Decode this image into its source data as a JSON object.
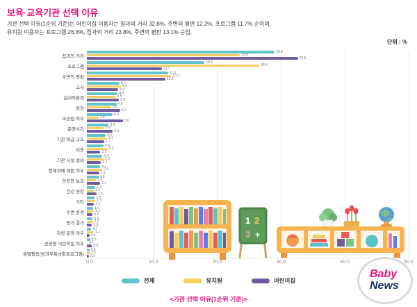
{
  "header": {
    "title": "보육·교육기관 선택 이유",
    "subtitle_line1": "기관 선택 이유(1순위 기준)는 어린이집 이용자는 집과의 거리 32.8%, 주변의 평판 12.2%, 프로그램 11.7% 순이며,",
    "subtitle_line2": "유치원 이용자는 프로그램 26.8%, 집과의 거리 23.8%, 주변의 평판 13.1% 순임.",
    "unit_label": "단위 : %"
  },
  "chart_data": {
    "type": "bar",
    "orientation": "horizontal",
    "title": "보육·교육기관 선택 이유",
    "xlabel": "",
    "ylabel": "",
    "xlim": [
      0,
      50
    ],
    "x_ticks": [
      "0.0",
      "10.0",
      "20.0",
      "30.0",
      "40.0",
      "50.0"
    ],
    "grid": true,
    "legend_position": "bottom",
    "categories": [
      "집과의 거리",
      "프로그램",
      "주변의 평판",
      "교사",
      "실내외환경",
      "원장",
      "국공립 여부",
      "운영시간",
      "기관 학급 규모",
      "비용",
      "기관 시설 설비",
      "형제자매 재원 여부",
      "안전한 보호",
      "건강 영양",
      "기타",
      "주변 환경",
      "평가 결과",
      "차량 운행 여부",
      "공공형 어린이집 여부",
      "특별활동(방과후특성화프로그램)"
    ],
    "series": [
      {
        "name": "전체",
        "color": "#62c3c9",
        "values": [
          29.2,
          18.3,
          12.6,
          5.1,
          4.8,
          4.6,
          4.0,
          3.4,
          2.9,
          2.6,
          2.4,
          2.1,
          1.8,
          1.3,
          1.2,
          1.0,
          0.9,
          0.7,
          0.5,
          0.4
        ]
      },
      {
        "name": "유치원",
        "color": "#f6cd5e",
        "values": [
          23.8,
          26.8,
          13.1,
          5.3,
          4.5,
          3.8,
          1.8,
          2.6,
          3.1,
          3.2,
          2.6,
          2.4,
          1.4,
          1.1,
          1.3,
          1.1,
          1.0,
          1.1,
          0.1,
          0.5
        ]
      },
      {
        "name": "어린이집",
        "color": "#6f5b9e",
        "values": [
          32.8,
          11.7,
          12.2,
          4.9,
          5.0,
          5.2,
          5.6,
          4.0,
          2.7,
          2.1,
          2.2,
          1.9,
          2.1,
          1.5,
          1.1,
          0.9,
          0.8,
          0.4,
          0.8,
          0.3
        ]
      }
    ]
  },
  "caption": "<기관 선택 이유(1순위 기준)>",
  "logo": {
    "baby": "Baby",
    "news": "News"
  }
}
